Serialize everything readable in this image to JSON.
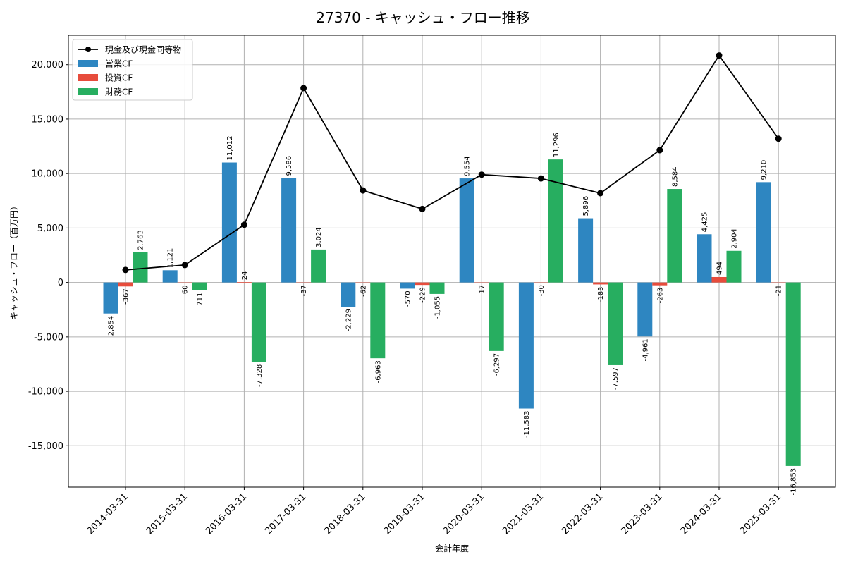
{
  "chart_data": {
    "type": "bar",
    "title": "27370 - キャッシュ・フロー推移",
    "xlabel": "会計年度",
    "ylabel": "キャッシュ・フロー（百万円）",
    "categories": [
      "2014-03-31",
      "2015-03-31",
      "2016-03-31",
      "2017-03-31",
      "2018-03-31",
      "2019-03-31",
      "2020-03-31",
      "2021-03-31",
      "2022-03-31",
      "2023-03-31",
      "2024-03-31",
      "2025-03-31"
    ],
    "series": [
      {
        "name": "営業CF",
        "type": "bar",
        "color": "#2e86c1",
        "values": [
          -2854,
          1121,
          11012,
          9586,
          -2229,
          -570,
          9554,
          -11583,
          5896,
          -4961,
          4425,
          9210
        ],
        "labels": [
          "-2,854",
          "1,121",
          "11,012",
          "9,586",
          "-2,229",
          "-570",
          "9,554",
          "-11,583",
          "5,896",
          "-4,961",
          "4,425",
          "9,210"
        ]
      },
      {
        "name": "投資CF",
        "type": "bar",
        "color": "#e74c3c",
        "values": [
          -367,
          -60,
          24,
          -37,
          -62,
          -229,
          -17,
          -30,
          -183,
          -263,
          494,
          -21
        ],
        "labels": [
          "-367",
          "-60",
          "24",
          "-37",
          "-62",
          "-229",
          "-17",
          "-30",
          "-183",
          "-263",
          "494",
          "-21"
        ]
      },
      {
        "name": "財務CF",
        "type": "bar",
        "color": "#27ae60",
        "values": [
          2763,
          -711,
          -7328,
          3024,
          -6963,
          -1055,
          -6297,
          11296,
          -7597,
          8584,
          2904,
          -16853
        ],
        "labels": [
          "2,763",
          "-711",
          "-7,328",
          "3,024",
          "-6,963",
          "-1,055",
          "-6,297",
          "11,296",
          "-7,597",
          "8,584",
          "2,904",
          "-16,853"
        ]
      },
      {
        "name": "現金及び現金同等物",
        "type": "line",
        "color": "#000000",
        "values": [
          1150,
          1600,
          5300,
          17850,
          8450,
          6750,
          9900,
          9550,
          8200,
          12150,
          20850,
          13200
        ]
      }
    ],
    "yticks": [
      -15000,
      -10000,
      -5000,
      0,
      5000,
      10000,
      15000,
      20000
    ],
    "ytick_labels": [
      "-15,000",
      "-10,000",
      "-5,000",
      "0",
      "5,000",
      "10,000",
      "15,000",
      "20,000"
    ],
    "ylim": [
      -18800,
      22700
    ],
    "grid": true,
    "legend_position": "upper-left"
  }
}
